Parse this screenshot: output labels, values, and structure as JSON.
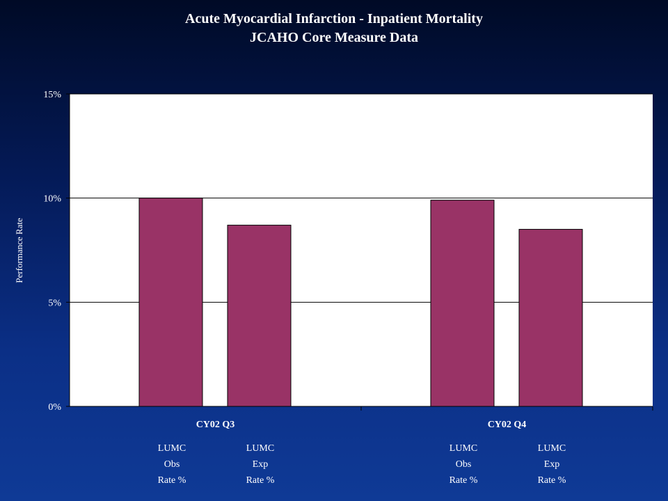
{
  "header": {
    "title_line1": "Acute Myocardial Infarction - Inpatient Mortality",
    "title_line2": "JCAHO Core Measure  Data"
  },
  "colors": {
    "bar": "#993366",
    "plot_background": "#ffffff",
    "gridline": "#000000",
    "text": "#ffffff"
  },
  "chart_data": {
    "type": "bar",
    "ylabel": "Performance Rate",
    "ylim": [
      0,
      15
    ],
    "yticks": [
      0,
      5,
      10,
      15
    ],
    "ytick_labels": [
      "0%",
      "5%",
      "10%",
      "15%"
    ],
    "grid": true,
    "categories": [
      "CY02  Q3",
      "CY02  Q4"
    ],
    "bars": [
      {
        "category": "CY02  Q3",
        "line1": "LUMC",
        "line2": "Obs",
        "line3": "Rate %",
        "value": 10.0
      },
      {
        "category": "CY02  Q3",
        "line1": "LUMC",
        "line2": "Exp",
        "line3": "Rate %",
        "value": 8.7
      },
      {
        "category": "CY02  Q4",
        "line1": "LUMC",
        "line2": "Obs",
        "line3": "Rate %",
        "value": 9.9
      },
      {
        "category": "CY02  Q4",
        "line1": "LUMC",
        "line2": "Exp",
        "line3": "Rate %",
        "value": 8.5
      }
    ]
  }
}
